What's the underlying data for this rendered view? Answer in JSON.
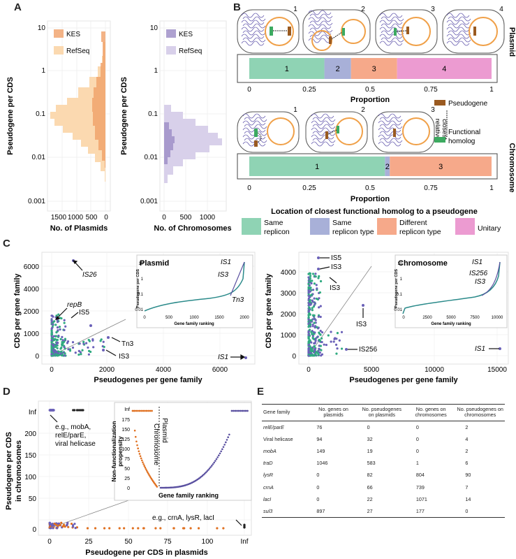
{
  "panel_labels": {
    "a": "A",
    "b": "B",
    "c": "C",
    "d": "D",
    "e": "E"
  },
  "panel_a": {
    "left": {
      "ylabel": "Pseudogene per CDS",
      "xlabel": "No. of Plasmids",
      "yticks": [
        "10",
        "1",
        "0.1",
        "0.01",
        "0.001"
      ],
      "xticks": [
        "1500",
        "1000",
        "500",
        "0"
      ],
      "legend": [
        "KES",
        "RefSeq"
      ],
      "colors": {
        "kes": "#f0a068",
        "refseq": "#fbd9b0"
      }
    },
    "right": {
      "ylabel": "Pseudogene per CDS",
      "xlabel": "No. of Chromosomes",
      "yticks": [
        "10",
        "1",
        "0.1",
        "0.01",
        "0.001"
      ],
      "xticks": [
        "0",
        "500",
        "1000"
      ],
      "legend": [
        "KES",
        "RefSeq"
      ],
      "colors": {
        "kes": "#a090c8",
        "refseq": "#d8d0ea"
      }
    }
  },
  "panel_b": {
    "plasmid_title": "Plasmid",
    "chromosome_title": "Chromosome",
    "plasmid_cases": [
      "1",
      "2",
      "3",
      "4"
    ],
    "chromosome_cases": [
      "1",
      "2",
      "3"
    ],
    "plasmid_bar": {
      "segments": [
        {
          "label": "1",
          "value": 0.31
        },
        {
          "label": "2",
          "value": 0.11
        },
        {
          "label": "3",
          "value": 0.19
        },
        {
          "label": "4",
          "value": 0.39
        }
      ]
    },
    "chromosome_bar": {
      "segments": [
        {
          "label": "1",
          "value": 0.56
        },
        {
          "label": "2",
          "value": 0.02
        },
        {
          "label": "3",
          "value": 0.42
        }
      ]
    },
    "axis_ticks": [
      "0",
      "0.25",
      "0.5",
      "0.75",
      "1"
    ],
    "xlabel": "Proportion",
    "key": {
      "pseudogene": "Pseudogene",
      "closest": "closest",
      "relative": "relative",
      "functional": "Functional",
      "homolog": "homolog"
    },
    "legend_title": "Location of closest functional homolog to a pseudogene",
    "legend": [
      {
        "line1": "Same",
        "line2": "replicon",
        "color": "#8fd3b4"
      },
      {
        "line1": "Same",
        "line2": "replicon type",
        "color": "#a8b0d8"
      },
      {
        "line1": "Different",
        "line2": "replicon type",
        "color": "#f6a98a"
      },
      {
        "line1": "Unitary",
        "line2": "",
        "color": "#ec9bd1"
      }
    ]
  },
  "panel_c": {
    "left": {
      "ylabel": "CDS per gene family",
      "xlabel": "Pseudogenes per gene family",
      "xticks": [
        "0",
        "2000",
        "4000",
        "6000"
      ],
      "yticks": [
        "0",
        "1000",
        "2000",
        "4000",
        "6000"
      ],
      "annotations": [
        "IS26",
        "repB",
        "IS5",
        "Tn3",
        "IS3",
        "IS1"
      ],
      "inset": {
        "title": "Plasmid",
        "ylabel": "Pseudogene per CDS",
        "xlabel": "Gene family ranking",
        "xticks": [
          "0",
          "500",
          "1000",
          "1500",
          "2000"
        ],
        "yticks": [
          "10",
          "1",
          "0.1",
          "0.01"
        ],
        "labels": [
          "IS1",
          "IS3",
          "Tn3"
        ]
      }
    },
    "right": {
      "ylabel": "CDS per gene family",
      "xlabel": "Pseudogenes per gene family",
      "xticks": [
        "0",
        "5000",
        "10000",
        "15000"
      ],
      "yticks": [
        "0",
        "1000",
        "2000",
        "3000",
        "4000"
      ],
      "annotations": [
        "IS5",
        "IS3",
        "IS3",
        "IS3",
        "IS256",
        "IS1"
      ],
      "inset": {
        "title": "Chromosome",
        "ylabel": "Pseudogene per CDS",
        "xlabel": "Gene family ranking",
        "xticks": [
          "0",
          "2500",
          "5000",
          "7500",
          "10000"
        ],
        "yticks": [
          "10",
          "1",
          "0.1",
          "0.01"
        ],
        "labels": [
          "IS1",
          "IS256",
          "IS3"
        ]
      }
    }
  },
  "panel_d": {
    "ylabel_line1": "Pseudogene per CDS",
    "ylabel_line2": "in chromosomes",
    "xlabel": "Pseudogene per CDS in plasmids",
    "xticks": [
      "0",
      "25",
      "50",
      "75",
      "100",
      "Inf"
    ],
    "yticks": [
      "Inf",
      "200",
      "150",
      "100",
      "50",
      "0"
    ],
    "annotation_top": [
      "e.g., mobA,",
      "relE/parE,",
      "viral helicase"
    ],
    "annotation_bottom": "e.g., crnA, lysR, lacI",
    "inset": {
      "ylabel_line1": "Non-functionalization",
      "ylabel_line2": "propensity",
      "xlabel": "Gene family ranking",
      "yticks": [
        "Inf",
        "175",
        "150",
        "125",
        "100",
        "75",
        "50",
        "25",
        "0"
      ],
      "left_label": "Chromosome",
      "right_label": "Plasmid"
    }
  },
  "panel_e": {
    "headers": [
      "Gene family",
      "No. genes on plasmids",
      "No. pseudogenes on plasmids",
      "No. genes on chromosomes",
      "No. pseudogenes on chromosomes"
    ],
    "rows": [
      [
        "relE/parE",
        "76",
        "0",
        "0",
        "2"
      ],
      [
        "Viral helicase",
        "94",
        "32",
        "0",
        "4"
      ],
      [
        "mobA",
        "149",
        "19",
        "0",
        "2"
      ],
      [
        "traD",
        "1046",
        "583",
        "1",
        "6"
      ],
      [
        "lysR",
        "0",
        "82",
        "804",
        "90"
      ],
      [
        "crnA",
        "0",
        "66",
        "739",
        "7"
      ],
      [
        "lacI",
        "0",
        "22",
        "1071",
        "14"
      ],
      [
        "sul3",
        "897",
        "27",
        "177",
        "0"
      ]
    ]
  }
}
